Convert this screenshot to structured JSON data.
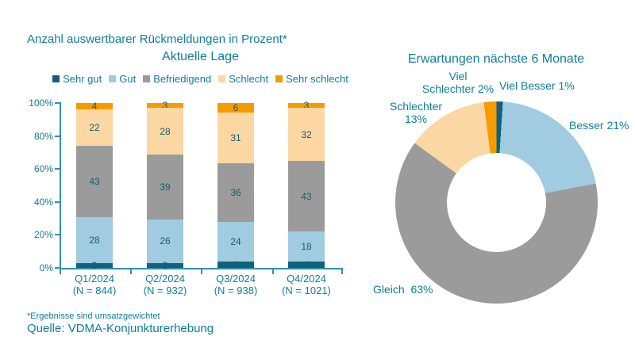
{
  "page": {
    "title": "Anzahl auswertbarer Rückmeldungen in Prozent*",
    "footnote": "*Ergebnisse sind umsatzgewichtet",
    "source": "Quelle: VDMA-Konjunkturerhebung",
    "text_color": "#0d7e9d",
    "background": "#ffffff"
  },
  "colors": {
    "dark_teal": "#11617c",
    "light_blue": "#a0cbe0",
    "gray": "#9b9b9b",
    "peach": "#fbd7a4",
    "orange": "#f59b00",
    "axis": "#2e93ab",
    "data_label": "#175d6e"
  },
  "chart_data": [
    {
      "type": "bar",
      "stacked": true,
      "title": "Aktuelle Lage",
      "unit": "percent",
      "grid": false,
      "legend_position": "top",
      "ylim": [
        0,
        100
      ],
      "yticks": [
        "0%",
        "20%",
        "40%",
        "60%",
        "80%",
        "100%"
      ],
      "categories": [
        "Q1/2024",
        "Q2/2024",
        "Q3/2024",
        "Q4/2024"
      ],
      "category_sublabels": [
        "(N = 844)",
        "(N = 932)",
        "(N = 938)",
        "(N = 1021)"
      ],
      "series": [
        {
          "name": "Sehr gut",
          "color": "#11617c",
          "values": [
            3,
            3,
            4,
            4
          ]
        },
        {
          "name": "Gut",
          "color": "#a0cbe0",
          "values": [
            28,
            26,
            24,
            18
          ]
        },
        {
          "name": "Befriedigend",
          "color": "#9b9b9b",
          "values": [
            43,
            39,
            36,
            43
          ]
        },
        {
          "name": "Schlecht",
          "color": "#fbd7a4",
          "values": [
            22,
            28,
            31,
            32
          ]
        },
        {
          "name": "Sehr schlecht",
          "color": "#f59b00",
          "values": [
            4,
            3,
            6,
            3
          ]
        }
      ]
    },
    {
      "type": "pie",
      "donut": true,
      "title": "Erwartungen nächste 6 Monate",
      "start_angle_deg": 0,
      "direction": "clockwise",
      "slices": [
        {
          "label": "Viel Besser",
          "value": 1,
          "color": "#11617c",
          "label_lines": [
            "Viel Besser 1%"
          ]
        },
        {
          "label": "Besser",
          "value": 21,
          "color": "#a0cbe0",
          "label_lines": [
            "Besser 21%"
          ]
        },
        {
          "label": "Gleich",
          "value": 63,
          "color": "#9b9b9b",
          "label_lines": [
            "Gleich  63%"
          ]
        },
        {
          "label": "Schlechter",
          "value": 13,
          "color": "#fbd7a4",
          "label_lines": [
            "Schlechter",
            "13%"
          ]
        },
        {
          "label": "Viel Schlechter",
          "value": 2,
          "color": "#f59b00",
          "label_lines": [
            "Viel",
            "Schlechter 2%"
          ]
        }
      ]
    }
  ]
}
